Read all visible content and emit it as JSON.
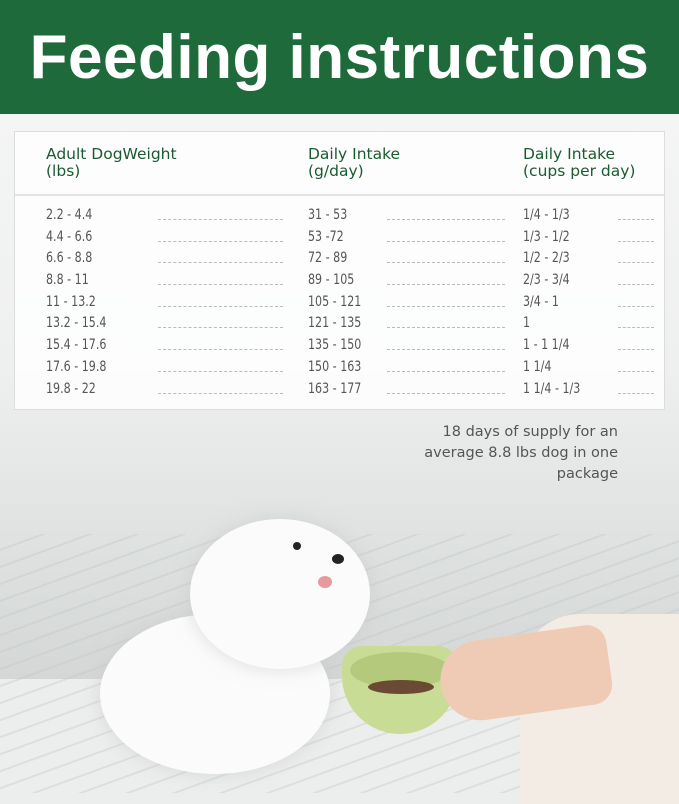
{
  "title": "Feeding instructions",
  "table": {
    "headers": [
      {
        "line1": "Adult DogWeight",
        "line2": "(lbs)"
      },
      {
        "line1": "Daily Intake",
        "line2": "(g/day)"
      },
      {
        "line1": "Daily Intake",
        "line2": "(cups per day)"
      }
    ],
    "rows": [
      [
        "2.2 - 4.4",
        "31 - 53",
        "1/4 - 1/3"
      ],
      [
        "4.4 - 6.6",
        "53  -72",
        "1/3 - 1/2"
      ],
      [
        "6.6 - 8.8",
        "72 - 89",
        "1/2 - 2/3"
      ],
      [
        "8.8 - 11",
        "89 - 105",
        "2/3 - 3/4"
      ],
      [
        "11 - 13.2",
        "105 - 121",
        "3/4 - 1"
      ],
      [
        "13.2 - 15.4",
        "121 - 135",
        "1"
      ],
      [
        "15.4 - 17.6",
        "135 - 150",
        "1 - 1 1/4"
      ],
      [
        "17.6 - 19.8",
        "150 - 163",
        "1 1/4"
      ],
      [
        "19.8 - 22",
        "163 - 177",
        "1 1/4 - 1/3"
      ]
    ]
  },
  "note": "18 days of supply for an average 8.8 lbs dog in one package",
  "colors": {
    "brand_green": "#1f6a3b",
    "header_text": "#1a5a30"
  }
}
